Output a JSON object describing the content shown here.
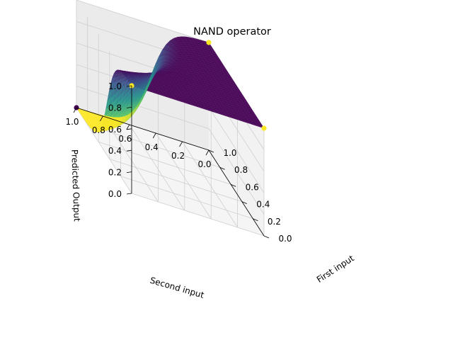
{
  "chart_data": {
    "type": "surface3d",
    "title": "NAND operator",
    "xlabel": "First input",
    "ylabel": "Second input",
    "zlabel": "Predicted Output",
    "xlim": [
      0,
      1
    ],
    "ylim": [
      0,
      1
    ],
    "zlim": [
      0,
      1
    ],
    "x_ticks": [
      "0.0",
      "0.2",
      "0.4",
      "0.6",
      "0.8",
      "1.0"
    ],
    "y_ticks": [
      "0.0",
      "0.2",
      "0.4",
      "0.6",
      "0.8",
      "1.0"
    ],
    "z_ticks": [
      "0.0",
      "0.2",
      "0.4",
      "0.6",
      "0.8",
      "1.0"
    ],
    "grid": true,
    "colormap": "viridis_r",
    "points": [
      {
        "x": 0,
        "y": 0,
        "z": 1,
        "color": "#fde725"
      },
      {
        "x": 0,
        "y": 1,
        "z": 1,
        "color": "#fde725"
      },
      {
        "x": 1,
        "y": 0,
        "z": 1,
        "color": "#fde725"
      },
      {
        "x": 1,
        "y": 1,
        "z": 0,
        "color": "#440154"
      }
    ]
  }
}
